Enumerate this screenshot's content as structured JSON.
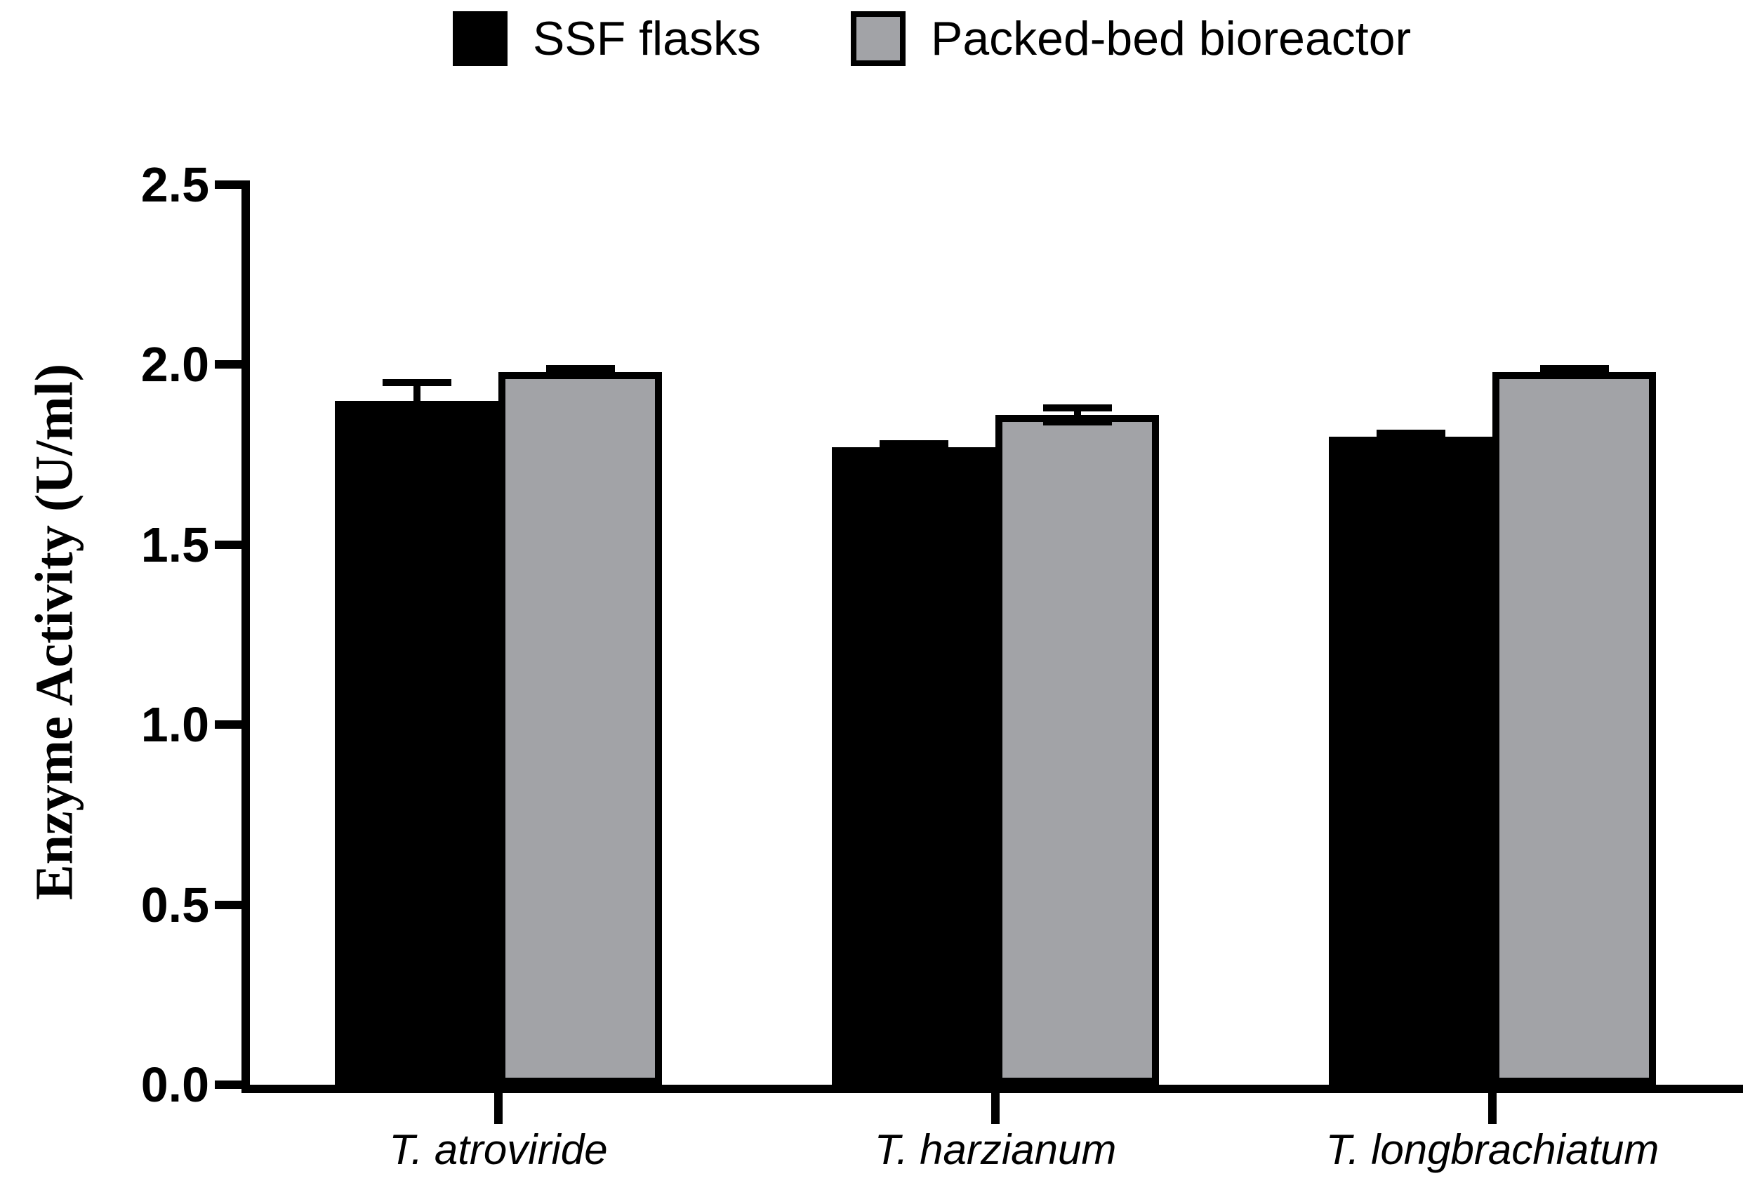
{
  "figure": {
    "background": "#ffffff",
    "axis_color": "#000000",
    "text_color": "#000000"
  },
  "legend": {
    "position": "top",
    "items": [
      {
        "label": "SSF flasks",
        "color": "#000000",
        "border": "#000000"
      },
      {
        "label": "Packed-bed bioreactor",
        "color": "#a2a3a7",
        "border": "#000000"
      }
    ]
  },
  "chart_data": {
    "type": "bar",
    "title": "",
    "xlabel": "",
    "ylabel": "Enzyme Activity (U/ml)",
    "ylim": [
      0,
      2.5
    ],
    "yticks": [
      0.0,
      0.5,
      1.0,
      1.5,
      2.0,
      2.5
    ],
    "ytick_labels": [
      "0.0",
      "0.5",
      "1.0",
      "1.5",
      "2.0",
      "2.5"
    ],
    "categories": [
      "T. atroviride",
      "T. harzianum",
      "T. longbrachiatum"
    ],
    "series": [
      {
        "name": "SSF flasks",
        "color": "#000000",
        "values": [
          1.9,
          1.77,
          1.8
        ],
        "errors": [
          0.05,
          0.01,
          0.01
        ]
      },
      {
        "name": "Packed-bed bioreactor",
        "color": "#a2a3a7",
        "values": [
          1.98,
          1.86,
          1.98
        ],
        "errors": [
          0.01,
          0.02,
          0.01
        ]
      }
    ],
    "grid": false,
    "legend_position": "top",
    "error_bars": "sd, black caps"
  }
}
